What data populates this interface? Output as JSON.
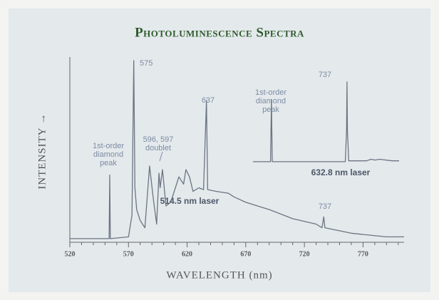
{
  "chart_data": [
    {
      "type": "line",
      "title": "Photoluminescence Spectra",
      "xlabel": "WAVELENGTH (nm)",
      "ylabel": "INTENSITY →",
      "color": "#6b7582",
      "x": [
        520,
        550,
        553.5,
        554,
        554.5,
        570,
        573,
        574.5,
        575.5,
        577,
        580,
        584,
        588,
        591,
        594,
        596,
        597,
        599,
        602,
        606,
        610,
        613,
        617,
        619,
        622,
        625,
        630,
        634,
        636.5,
        637.5,
        645,
        655,
        660,
        670,
        690,
        710,
        730,
        735,
        736.5,
        737.5,
        760,
        790,
        805
      ],
      "values": [
        2,
        2,
        2,
        37,
        2,
        3,
        15,
        100,
        30,
        18,
        12,
        8,
        42,
        25,
        10,
        38,
        30,
        40,
        20,
        22,
        30,
        36,
        32,
        40,
        36,
        28,
        30,
        29,
        78,
        29,
        28,
        27,
        25,
        22,
        18,
        13,
        10,
        8,
        14,
        8,
        5,
        3,
        3
      ],
      "xlim": [
        520,
        805
      ],
      "ylim": [
        0,
        100
      ],
      "xticks": [
        520,
        570,
        620,
        670,
        720,
        770
      ],
      "xminorticks": [
        530,
        540,
        550,
        560,
        580,
        590,
        600,
        610,
        630,
        640,
        650,
        660,
        680,
        690,
        700,
        710,
        730,
        740,
        750,
        760,
        780,
        790,
        800
      ],
      "annotations": [
        {
          "text": [
            "575"
          ]
        },
        {
          "text": [
            "1st-order",
            "diamond",
            "peak"
          ]
        },
        {
          "text": [
            "596, 597",
            "doublet"
          ]
        },
        {
          "text": [
            "637"
          ]
        },
        {
          "text": [
            "514.5 nm laser"
          ]
        },
        {
          "text": [
            "737"
          ]
        }
      ]
    },
    {
      "type": "line",
      "color": "#6b7582",
      "x": [
        627,
        640,
        647.5,
        648.6,
        649.5,
        660,
        700,
        735,
        736.5,
        737,
        737.5,
        739,
        750,
        760,
        765,
        770,
        775,
        790,
        798
      ],
      "values": [
        1,
        1,
        1,
        78,
        1,
        1,
        1,
        1,
        40,
        100,
        40,
        2,
        2,
        2,
        4,
        3,
        4,
        2,
        2
      ],
      "xlim": [
        627,
        798
      ],
      "ylim": [
        0,
        100
      ],
      "annotations": [
        {
          "text": [
            "1st-order",
            "diamond",
            "peak"
          ]
        },
        {
          "text": [
            "737"
          ]
        },
        {
          "text": [
            "632.8 nm laser"
          ]
        }
      ]
    }
  ]
}
